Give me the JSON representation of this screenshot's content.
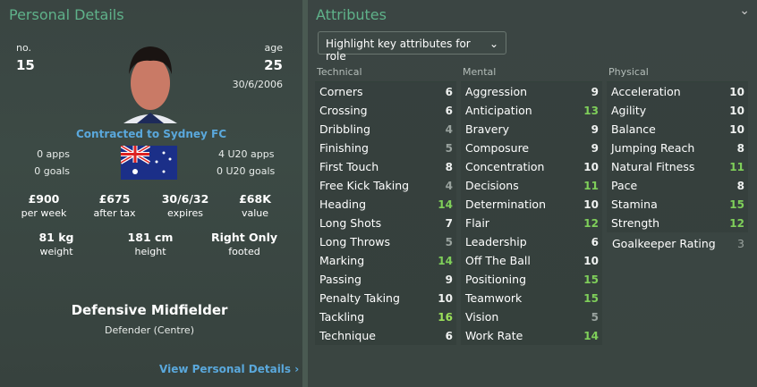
{
  "left": {
    "title": "Personal Details",
    "no_label": "no.",
    "no": "15",
    "age_label": "age",
    "age": "25",
    "dob": "30/6/2006",
    "contract": "Contracted to Sydney FC",
    "apps": "0 apps",
    "goals": "0 goals",
    "u20_apps": "4 U20 apps",
    "u20_goals": "0 U20 goals",
    "stats": [
      {
        "v": "£900",
        "l": "per week"
      },
      {
        "v": "£675",
        "l": "after tax"
      },
      {
        "v": "30/6/32",
        "l": "expires"
      },
      {
        "v": "£68K",
        "l": "value"
      }
    ],
    "body": [
      {
        "v": "81 kg",
        "l": "weight"
      },
      {
        "v": "181 cm",
        "l": "height"
      },
      {
        "v": "Right Only",
        "l": "footed"
      }
    ],
    "position": "Defensive Midfielder",
    "role": "Defender (Centre)",
    "link": "View Personal Details",
    "nationality": "Australia"
  },
  "right": {
    "title": "Attributes",
    "dropdown": "Highlight key attributes for role",
    "columns": [
      {
        "title": "Technical",
        "items": [
          [
            "Corners",
            6
          ],
          [
            "Crossing",
            6
          ],
          [
            "Dribbling",
            4
          ],
          [
            "Finishing",
            5
          ],
          [
            "First Touch",
            8
          ],
          [
            "Free Kick Taking",
            4
          ],
          [
            "Heading",
            14
          ],
          [
            "Long Shots",
            7
          ],
          [
            "Long Throws",
            5
          ],
          [
            "Marking",
            14
          ],
          [
            "Passing",
            9
          ],
          [
            "Penalty Taking",
            10
          ],
          [
            "Tackling",
            16
          ],
          [
            "Technique",
            6
          ]
        ]
      },
      {
        "title": "Mental",
        "items": [
          [
            "Aggression",
            9
          ],
          [
            "Anticipation",
            13
          ],
          [
            "Bravery",
            9
          ],
          [
            "Composure",
            9
          ],
          [
            "Concentration",
            10
          ],
          [
            "Decisions",
            11
          ],
          [
            "Determination",
            10
          ],
          [
            "Flair",
            12
          ],
          [
            "Leadership",
            6
          ],
          [
            "Off The Ball",
            10
          ],
          [
            "Positioning",
            15
          ],
          [
            "Teamwork",
            15
          ],
          [
            "Vision",
            5
          ],
          [
            "Work Rate",
            14
          ]
        ]
      },
      {
        "title": "Physical",
        "items": [
          [
            "Acceleration",
            10
          ],
          [
            "Agility",
            10
          ],
          [
            "Balance",
            10
          ],
          [
            "Jumping Reach",
            8
          ],
          [
            "Natural Fitness",
            11
          ],
          [
            "Pace",
            8
          ],
          [
            "Stamina",
            15
          ],
          [
            "Strength",
            12
          ]
        ]
      }
    ],
    "gk_label": "Goalkeeper Rating",
    "gk_value": "3"
  },
  "colors": {
    "low": "#9aa39f",
    "mid": "#f0f2f1",
    "good": "#7fcf5a",
    "great": "#9be05a",
    "header": "#5fb28a",
    "link": "#5aa8dc"
  }
}
